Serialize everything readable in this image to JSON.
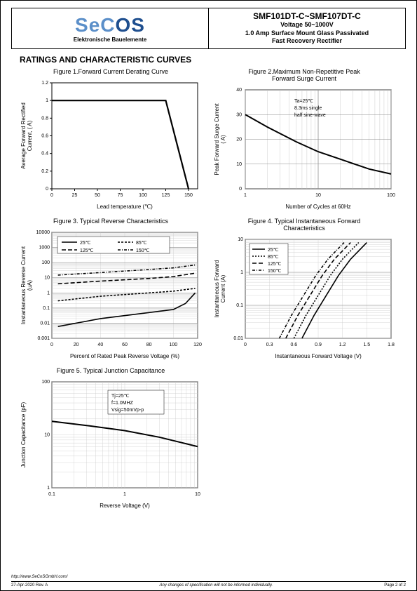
{
  "header": {
    "logo_text_1": "SeC",
    "logo_text_2": "OS",
    "logo_sub": "Elektronische Bauelemente",
    "product": "SMF101DT-C~SMF107DT-C",
    "voltage": "Voltage 50~1000V",
    "desc": "1.0 Amp Surface Mount Glass Passivated\nFast Recovery Rectifier"
  },
  "section_title": "RATINGS AND CHARACTERISTIC CURVES",
  "footer": {
    "url": "http://www.SeCoSGmbH.com/",
    "date": "27-Apr-2020 Rev. A",
    "note": "Any changes of specification will not be informed individually.",
    "page": "Page  2  of  2"
  },
  "fig1": {
    "title": "Figure 1.Forward Current Derating Curve",
    "ylabel": "Average Forward Rectified\nCurrent, ( A)",
    "xlabel": "Lead temperature (℃)",
    "xlim": [
      0,
      160
    ],
    "xticks": [
      0,
      25,
      50,
      75,
      100,
      125,
      150
    ],
    "ylim": [
      0,
      1.2
    ],
    "yticks": [
      0,
      0.2,
      0.4,
      0.6,
      0.8,
      1,
      1.2
    ],
    "line": [
      [
        0,
        1
      ],
      [
        125,
        1
      ],
      [
        150,
        0
      ]
    ],
    "line_color": "#000",
    "line_width": 2.2
  },
  "fig2": {
    "title": "Figure 2.Maximum Non-Repetitive Peak\nForward Surge Current",
    "ylabel": "Peak Forward Surge Current\n( A)",
    "xlabel": "Number of Cycles at 60Hz",
    "xlim": [
      1,
      100
    ],
    "xticks": [
      1,
      10,
      100
    ],
    "xscale": "log",
    "ylim": [
      0,
      40
    ],
    "yticks": [
      0,
      10,
      20,
      30,
      40
    ],
    "line": [
      [
        1,
        30
      ],
      [
        2,
        25
      ],
      [
        5,
        19
      ],
      [
        10,
        15
      ],
      [
        20,
        12
      ],
      [
        50,
        8
      ],
      [
        100,
        6
      ]
    ],
    "annot": [
      "Ta=25℃",
      "8.3ms single",
      "half sine-wave"
    ],
    "line_color": "#000",
    "line_width": 2
  },
  "fig3": {
    "title": "Figure 3. Typical Reverse Characteristics",
    "ylabel": "Instantaneous Reverse Current\n(uA)",
    "xlabel": "Percent of  Rated Peak Reverse Voltage (%)",
    "xlim": [
      0,
      120
    ],
    "xticks": [
      0,
      20,
      40,
      60,
      80,
      100,
      120
    ],
    "ylim": [
      0.001,
      10000
    ],
    "yticks": [
      0.001,
      0.01,
      0.1,
      1,
      10,
      100,
      1000,
      10000
    ],
    "yscale": "log",
    "series": [
      {
        "label": "25℃",
        "dash": "",
        "data": [
          [
            5,
            0.006
          ],
          [
            40,
            0.02
          ],
          [
            80,
            0.05
          ],
          [
            100,
            0.08
          ],
          [
            110,
            0.2
          ],
          [
            118,
            1
          ]
        ]
      },
      {
        "label": "85℃",
        "dash": "3,2",
        "data": [
          [
            5,
            0.3
          ],
          [
            40,
            0.6
          ],
          [
            80,
            1.0
          ],
          [
            100,
            1.3
          ],
          [
            118,
            2
          ]
        ]
      },
      {
        "label": "125℃",
        "dash": "6,3",
        "data": [
          [
            5,
            4
          ],
          [
            40,
            6
          ],
          [
            80,
            9
          ],
          [
            100,
            12
          ],
          [
            118,
            20
          ]
        ]
      },
      {
        "label": "150℃",
        "dash": "4,2,1,2",
        "data": [
          [
            5,
            15
          ],
          [
            40,
            22
          ],
          [
            80,
            35
          ],
          [
            100,
            45
          ],
          [
            118,
            70
          ]
        ]
      }
    ]
  },
  "fig4": {
    "title": "Figure 4. Typical Instantaneous Forward\nCharacteristics",
    "ylabel": "Instantaneous Forward\nCurrent (A)",
    "xlabel": "Instantaneous Forward Voltage (V)",
    "xlim": [
      0,
      1.8
    ],
    "xticks": [
      0,
      0.3,
      0.6,
      0.9,
      1.2,
      1.5,
      1.8
    ],
    "ylim": [
      0.01,
      10
    ],
    "yticks": [
      0.01,
      0.1,
      1,
      10
    ],
    "yscale": "log",
    "series": [
      {
        "label": "25℃",
        "dash": "",
        "data": [
          [
            0.7,
            0.01
          ],
          [
            0.85,
            0.05
          ],
          [
            1.0,
            0.2
          ],
          [
            1.15,
            0.8
          ],
          [
            1.3,
            2.5
          ],
          [
            1.5,
            8
          ]
        ]
      },
      {
        "label": "85℃",
        "dash": "2,2",
        "data": [
          [
            0.6,
            0.01
          ],
          [
            0.75,
            0.05
          ],
          [
            0.9,
            0.2
          ],
          [
            1.05,
            0.8
          ],
          [
            1.2,
            2.5
          ],
          [
            1.4,
            8
          ]
        ]
      },
      {
        "label": "125℃",
        "dash": "6,3",
        "data": [
          [
            0.5,
            0.01
          ],
          [
            0.65,
            0.05
          ],
          [
            0.8,
            0.2
          ],
          [
            0.95,
            0.8
          ],
          [
            1.1,
            2.5
          ],
          [
            1.3,
            8
          ]
        ]
      },
      {
        "label": "150℃",
        "dash": "4,2,1,2",
        "data": [
          [
            0.42,
            0.01
          ],
          [
            0.57,
            0.05
          ],
          [
            0.72,
            0.2
          ],
          [
            0.87,
            0.8
          ],
          [
            1.02,
            2.5
          ],
          [
            1.22,
            8
          ]
        ]
      }
    ]
  },
  "fig5": {
    "title": "Figure 5. Typical Junction Capacitance",
    "ylabel": "Junction Capacitance (pF)",
    "xlabel": "Reverse Voltage (V)",
    "xlim": [
      0.1,
      10
    ],
    "xticks": [
      0.1,
      1,
      10
    ],
    "xscale": "log",
    "ylim": [
      1,
      100
    ],
    "yticks": [
      1,
      10,
      100
    ],
    "yscale": "log",
    "line": [
      [
        0.1,
        18
      ],
      [
        0.3,
        15
      ],
      [
        1,
        12
      ],
      [
        3,
        9
      ],
      [
        10,
        6
      ]
    ],
    "annot": [
      "Tj=25℃",
      "f=1.0MHZ",
      "Vsig=50mVp-p"
    ]
  }
}
